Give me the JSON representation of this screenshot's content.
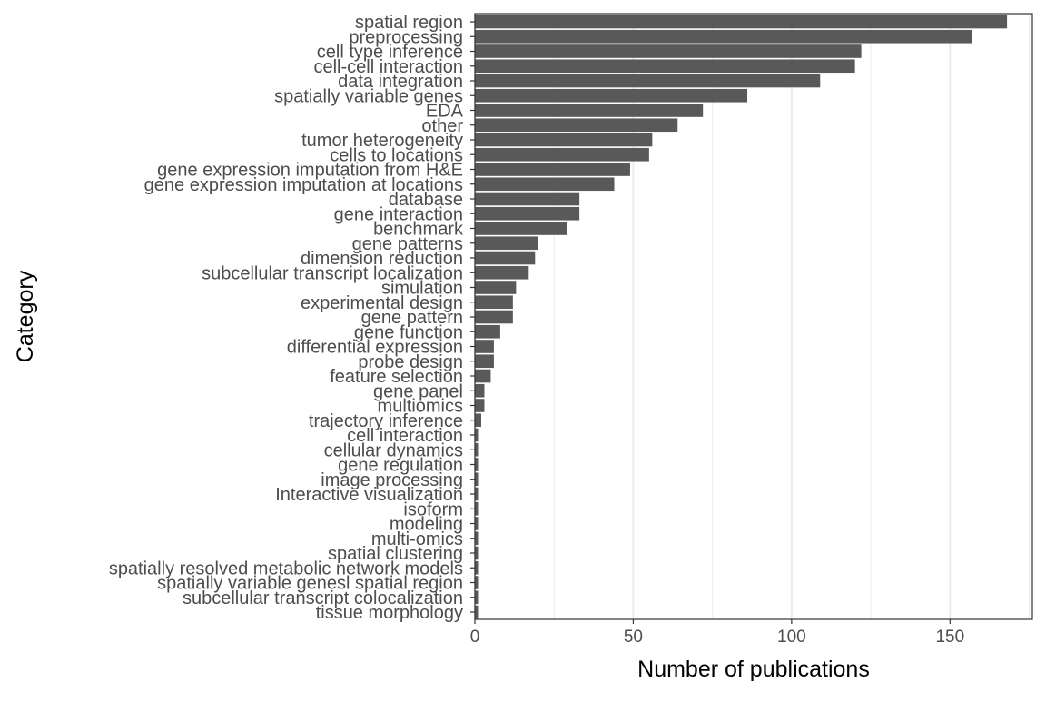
{
  "chart_data": {
    "type": "bar",
    "orientation": "horizontal",
    "xlabel": "Number of publications",
    "ylabel": "Category",
    "xlim": [
      0,
      176
    ],
    "xticks": [
      0,
      50,
      100,
      150
    ],
    "grid": true,
    "bar_color": "#595959",
    "grid_color": "#ebebeb",
    "categories": [
      "spatial region",
      "preprocessing",
      "cell type inference",
      "cell-cell interaction",
      "data integration",
      "spatially variable genes",
      "EDA",
      "other",
      "tumor heterogeneity",
      "cells to locations",
      "gene expression imputation from H&E",
      "gene expression imputation at locations",
      "database",
      "gene interaction",
      "benchmark",
      "gene patterns",
      "dimension reduction",
      "subcellular transcript localization",
      "simulation",
      "experimental design",
      "gene pattern",
      "gene function",
      "differential expression",
      "probe design",
      "feature selection",
      "gene panel",
      "multiomics",
      "trajectory inference",
      "cell interaction",
      "cellular dynamics",
      "gene regulation",
      "image processing",
      "Interactive visualization",
      "isoform",
      "modeling",
      "multi-omics",
      "spatial clustering",
      "spatially resolved metabolic network models",
      "spatially variable genesl spatial region",
      "subcellular transcript colocalization",
      "tissue morphology"
    ],
    "values": [
      168,
      157,
      122,
      120,
      109,
      86,
      72,
      64,
      56,
      55,
      49,
      44,
      33,
      33,
      29,
      20,
      19,
      17,
      13,
      12,
      12,
      8,
      6,
      6,
      5,
      3,
      3,
      2,
      1,
      1,
      1,
      1,
      1,
      1,
      1,
      1,
      1,
      1,
      1,
      1,
      1
    ]
  }
}
